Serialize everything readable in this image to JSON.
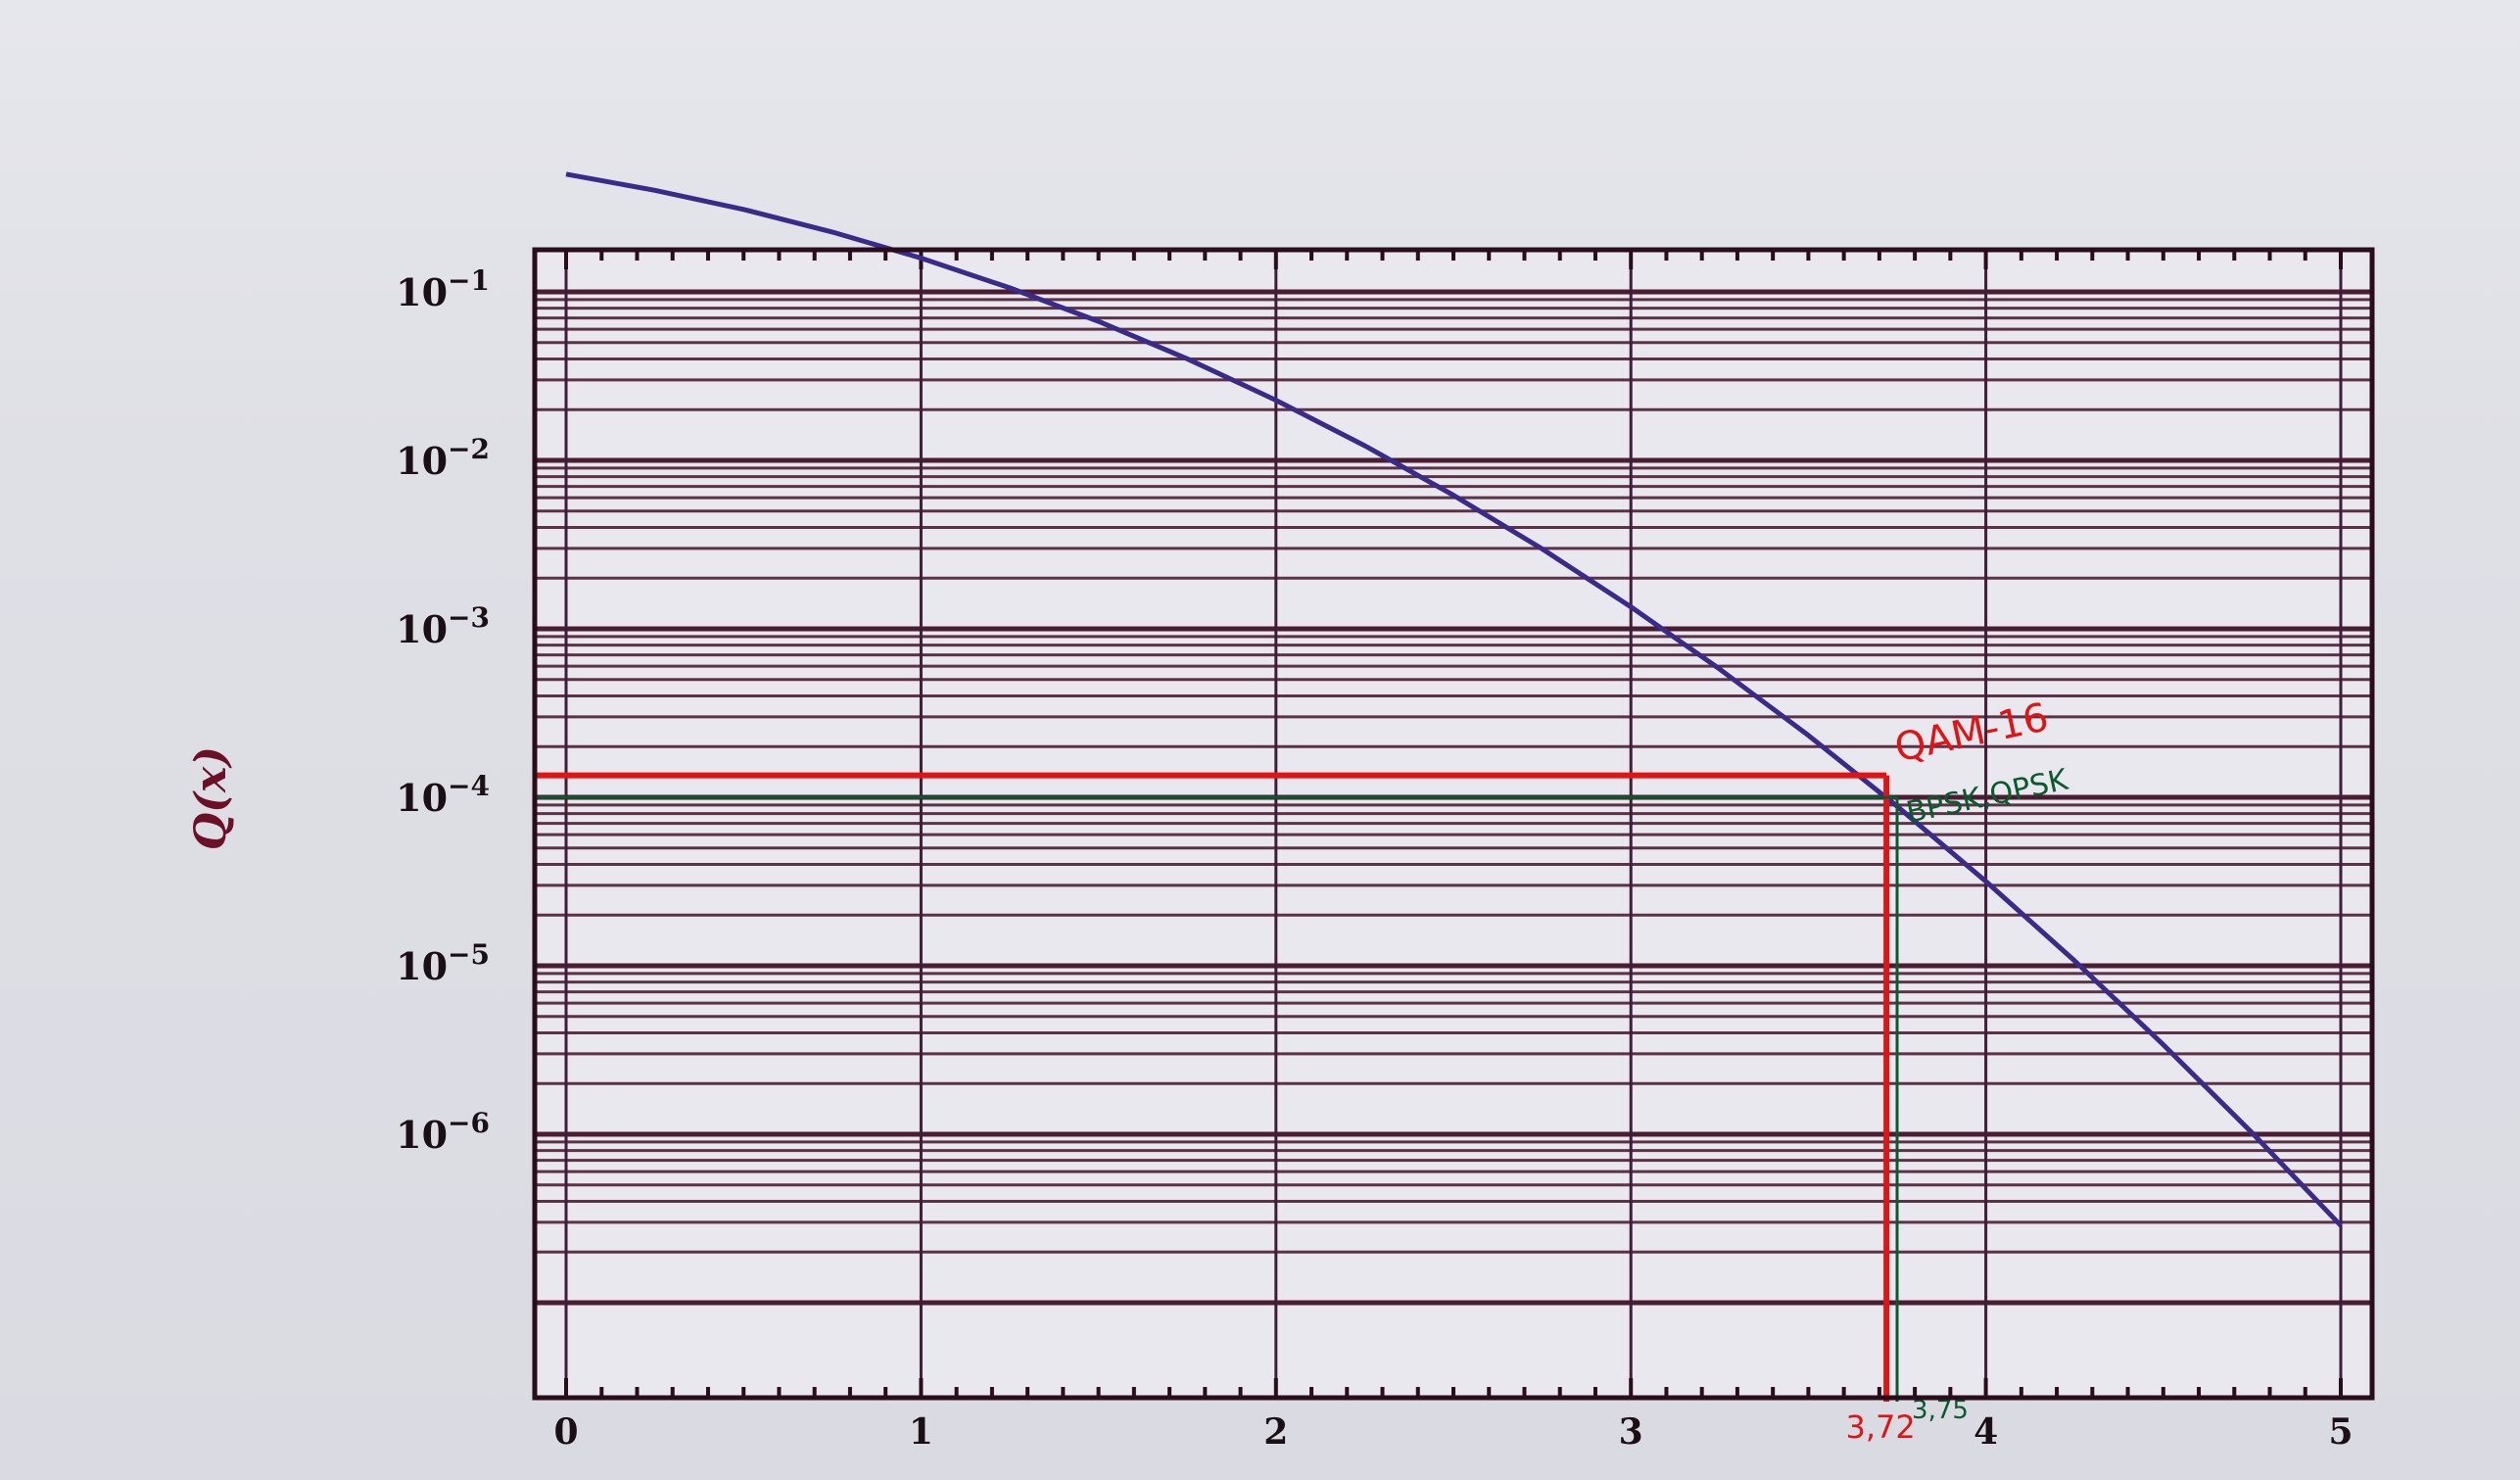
{
  "chart_data": {
    "type": "line",
    "ylabel": "Q(x)",
    "xlabel": "",
    "xlim": [
      0,
      5
    ],
    "ylim_exponent": [
      -6.7,
      0
    ],
    "y_scale": "log",
    "x_ticks": [
      0,
      1,
      2,
      3,
      4,
      5
    ],
    "y_ticks": [
      {
        "base": "10",
        "exp": "−1",
        "value": 0.1
      },
      {
        "base": "10",
        "exp": "−2",
        "value": 0.01
      },
      {
        "base": "10",
        "exp": "−3",
        "value": 0.001
      },
      {
        "base": "10",
        "exp": "−4",
        "value": 0.0001
      },
      {
        "base": "10",
        "exp": "−5",
        "value": 1e-05
      },
      {
        "base": "10",
        "exp": "−6",
        "value": 1e-06
      }
    ],
    "grid": true,
    "series": [
      {
        "color": "#3a2a8a",
        "x": [
          0,
          0.25,
          0.5,
          0.75,
          1,
          1.25,
          1.5,
          1.75,
          2,
          2.25,
          2.5,
          2.75,
          3,
          3.25,
          3.5,
          3.75,
          4,
          4.25,
          4.5,
          4.75,
          5
        ],
        "y": [
          0.5,
          0.401,
          0.3085,
          0.2266,
          0.1587,
          0.1056,
          0.0668,
          0.0401,
          0.02275,
          0.01222,
          0.00621,
          0.00298,
          0.00135,
          0.000577,
          0.000233,
          8.84e-05,
          3.17e-05,
          1.07e-05,
          3.4e-06,
          1.02e-06,
          2.87e-07
        ]
      }
    ],
    "annotations": [
      {
        "label": "QAM-16",
        "y": 0.000135,
        "x": 3.72,
        "x_label": "3,72",
        "color": "#e01414"
      },
      {
        "label": "BPSK,QPSK",
        "y": 0.0001,
        "x": 3.75,
        "x_label": "3,75",
        "color": "#0b5a2c"
      }
    ]
  }
}
